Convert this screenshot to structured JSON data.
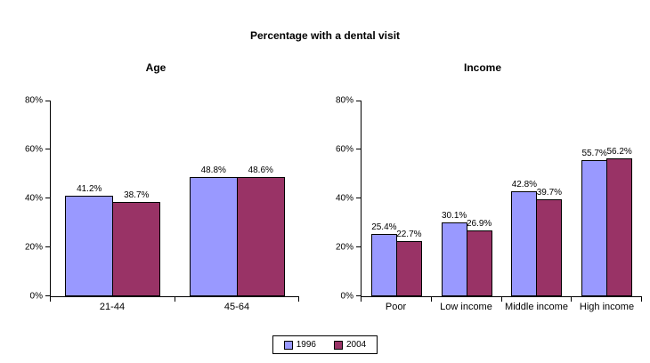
{
  "title": "Percentage with a dental visit",
  "y_axis": {
    "tick_labels": [
      "0%",
      "20%",
      "40%",
      "60%",
      "80%"
    ],
    "min": 0,
    "max": 80
  },
  "legend": {
    "position": "bottom-center",
    "items": [
      {
        "label": "1996",
        "color": "#9999FF"
      },
      {
        "label": "2004",
        "color": "#993366"
      }
    ]
  },
  "colors": {
    "series_1996": "#9999FF",
    "series_2004": "#993366",
    "bar_border": "#000000",
    "axis": "#000000",
    "background": "#FFFFFF"
  },
  "chart_data": [
    {
      "type": "bar",
      "title": "Age",
      "categories": [
        "21-44",
        "45-64"
      ],
      "series": [
        {
          "name": "1996",
          "values": [
            41.2,
            48.8
          ]
        },
        {
          "name": "2004",
          "values": [
            38.7,
            48.6
          ]
        }
      ],
      "xlabel": "",
      "ylabel": "",
      "ylim": [
        0,
        80
      ],
      "grid": false,
      "value_labels": true,
      "value_suffix": "%"
    },
    {
      "type": "bar",
      "title": "Income",
      "categories": [
        "Poor",
        "Low income",
        "Middle income",
        "High income"
      ],
      "series": [
        {
          "name": "1996",
          "values": [
            25.4,
            30.1,
            42.8,
            55.7
          ]
        },
        {
          "name": "2004",
          "values": [
            22.7,
            26.9,
            39.7,
            56.2
          ]
        }
      ],
      "xlabel": "",
      "ylabel": "",
      "ylim": [
        0,
        80
      ],
      "grid": false,
      "value_labels": true,
      "value_suffix": "%"
    }
  ]
}
